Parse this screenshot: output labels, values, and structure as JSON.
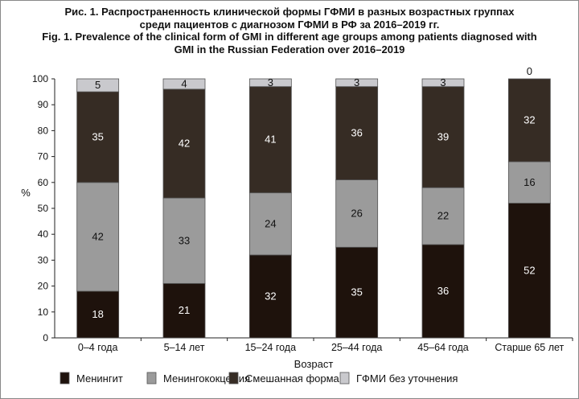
{
  "chart_data": {
    "type": "bar",
    "stacked": true,
    "title_ru": "Рис. 1. Распространенность клинической формы ГФМИ в разных возрастных группах среди пациентов с диагнозом ГФМИ в РФ за 2016–2019 гг.",
    "title_en": "Fig. 1. Prevalence of the clinical form of GMI in different age groups among patients diagnosed with GMI in the Russian Federation over 2016–2019",
    "xlabel": "Возраст",
    "ylabel": "%",
    "ylim": [
      0,
      100
    ],
    "yticks": [
      0,
      10,
      20,
      30,
      40,
      50,
      60,
      70,
      80,
      90,
      100
    ],
    "categories": [
      "0–4 года",
      "5–14 лет",
      "15–24 года",
      "25–44 года",
      "45–64 года",
      "Старше 65 лет"
    ],
    "series": [
      {
        "name": "Менингит",
        "color": "#1e120c",
        "label_color": "#ffffff",
        "values": [
          18,
          21,
          32,
          35,
          36,
          52
        ]
      },
      {
        "name": "Менингококцемия",
        "color": "#9b9b9b",
        "label_color": "#111111",
        "values": [
          42,
          33,
          24,
          26,
          22,
          16
        ]
      },
      {
        "name": "Смешанная форма",
        "color": "#362c24",
        "label_color": "#ffffff",
        "values": [
          35,
          42,
          41,
          36,
          39,
          32
        ]
      },
      {
        "name": "ГФМИ без уточнения",
        "color": "#c9c9cd",
        "label_color": "#111111",
        "values": [
          5,
          4,
          3,
          3,
          3,
          0
        ]
      }
    ],
    "legend_position": "bottom",
    "grid": false
  }
}
